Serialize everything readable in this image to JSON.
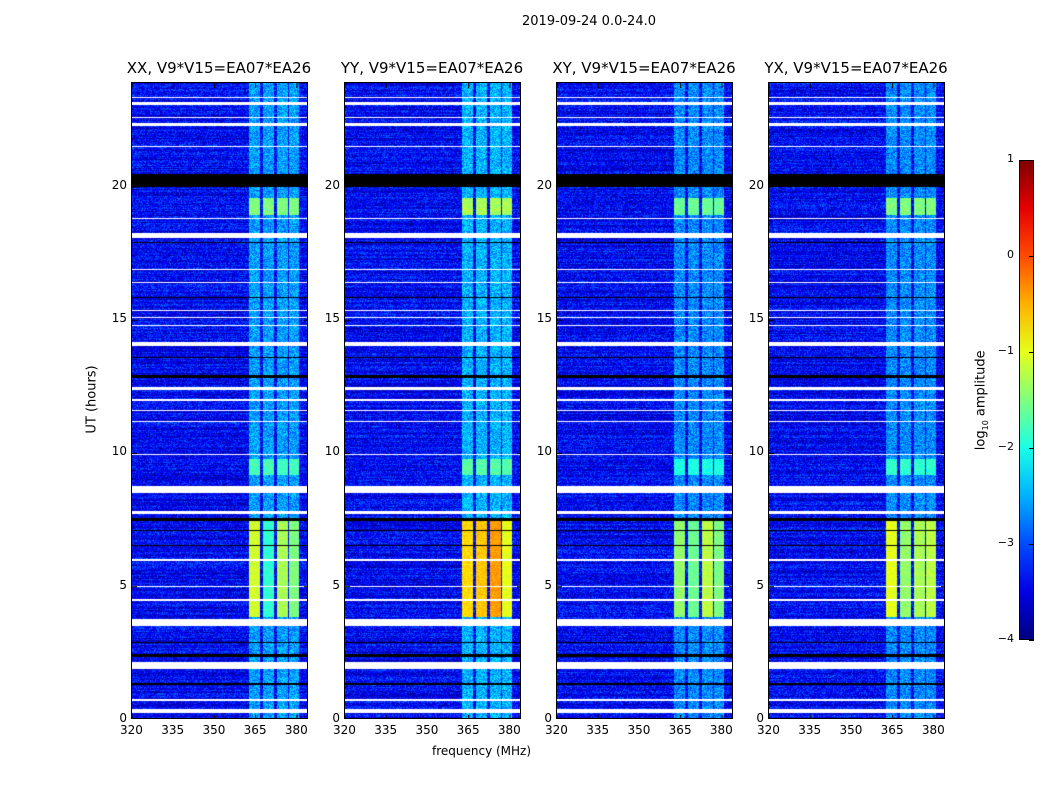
{
  "chart_data": {
    "type": "heatmap",
    "title": "2019-09-24 0.0-24.0",
    "xlabel": "frequency (MHz)",
    "ylabel": "UT (hours)",
    "xlim": [
      320,
      384.4
    ],
    "ylim": [
      0,
      23.9
    ],
    "xticks": [
      "320",
      "335",
      "350",
      "365",
      "380"
    ],
    "xtick_values": [
      320,
      335,
      350,
      365,
      380
    ],
    "yticks": [
      "0",
      "5",
      "10",
      "15",
      "20"
    ],
    "ytick_values": [
      0,
      5,
      10,
      15,
      20
    ],
    "colorbar": {
      "label": "log10 amplitude",
      "label_main": "log",
      "label_sub": "10",
      "label_rest": " amplitude",
      "range": [
        -4,
        1
      ],
      "ticks": [
        "1",
        "0",
        "−1",
        "−2",
        "−3",
        "−4"
      ],
      "tick_values": [
        1,
        0,
        -1,
        -2,
        -3,
        -4
      ],
      "cmap": "jet"
    },
    "background_level": -3.4,
    "channel_groups_mhz": [
      [
        362.5,
        366.5
      ],
      [
        367.5,
        371.5
      ],
      [
        372.5,
        376.5
      ],
      [
        377,
        380.5
      ]
    ],
    "flagged_rows_h": [
      [
        0.3,
        0.45
      ],
      [
        0.72,
        0.8
      ],
      [
        1.95,
        2.2
      ],
      [
        3.55,
        3.8
      ],
      [
        4.5,
        4.55
      ],
      [
        5.0,
        5.05
      ],
      [
        6.0,
        6.05
      ],
      [
        7.75,
        7.85
      ],
      [
        8.55,
        8.8
      ],
      [
        9.95,
        10.0
      ],
      [
        11.2,
        11.25
      ],
      [
        11.6,
        11.65
      ],
      [
        12.0,
        12.05
      ],
      [
        12.4,
        12.5
      ],
      [
        14.05,
        14.2
      ],
      [
        14.8,
        14.85
      ],
      [
        15.1,
        15.15
      ],
      [
        15.35,
        15.4
      ],
      [
        16.4,
        16.45
      ],
      [
        16.9,
        16.95
      ],
      [
        18.1,
        18.3
      ],
      [
        18.8,
        18.85
      ],
      [
        21.5,
        21.55
      ],
      [
        22.3,
        22.4
      ],
      [
        22.6,
        22.65
      ],
      [
        23.1,
        23.2
      ],
      [
        23.35,
        23.4
      ]
    ],
    "dead_rows_h": [
      [
        1.35,
        1.4
      ],
      [
        2.4,
        2.5
      ],
      [
        2.9,
        2.95
      ],
      [
        6.55,
        6.6
      ],
      [
        7.1,
        7.15
      ],
      [
        7.5,
        7.6
      ],
      [
        12.85,
        12.95
      ],
      [
        13.6,
        13.65
      ],
      [
        15.85,
        15.9
      ],
      [
        17.9,
        17.95
      ],
      [
        20.0,
        20.5
      ]
    ],
    "panels": [
      {
        "name": "XX",
        "title": "XX, V9*V15=EA07*EA26",
        "block_level": -1.1,
        "block_levels": [
          -1.1,
          -1.9,
          -1.3,
          -1.5
        ],
        "burst19": -1.5,
        "burst9": -1.8,
        "streak": -2.6
      },
      {
        "name": "YY",
        "title": "YY, V9*V15=EA07*EA26",
        "block_level": -0.6,
        "block_levels": [
          -0.7,
          -0.6,
          -0.4,
          -1.0
        ],
        "burst19": -1.3,
        "burst9": -1.7,
        "streak": -2.5
      },
      {
        "name": "XY",
        "title": "XY, V9*V15=EA07*EA26",
        "block_level": -1.3,
        "block_levels": [
          -1.4,
          -1.6,
          -1.2,
          -1.5
        ],
        "burst19": -1.6,
        "burst9": -2.0,
        "streak": -2.7
      },
      {
        "name": "YX",
        "title": "YX, V9*V15=EA07*EA26",
        "block_level": -1.1,
        "block_levels": [
          -1.0,
          -1.4,
          -1.3,
          -1.2
        ],
        "burst19": -1.5,
        "burst9": -1.9,
        "streak": -2.7
      }
    ],
    "bright_block_h": [
      3.9,
      7.6
    ],
    "burst19_h": [
      18.95,
      19.6
    ],
    "burst9_h": [
      9.2,
      9.8
    ],
    "grid": false
  }
}
